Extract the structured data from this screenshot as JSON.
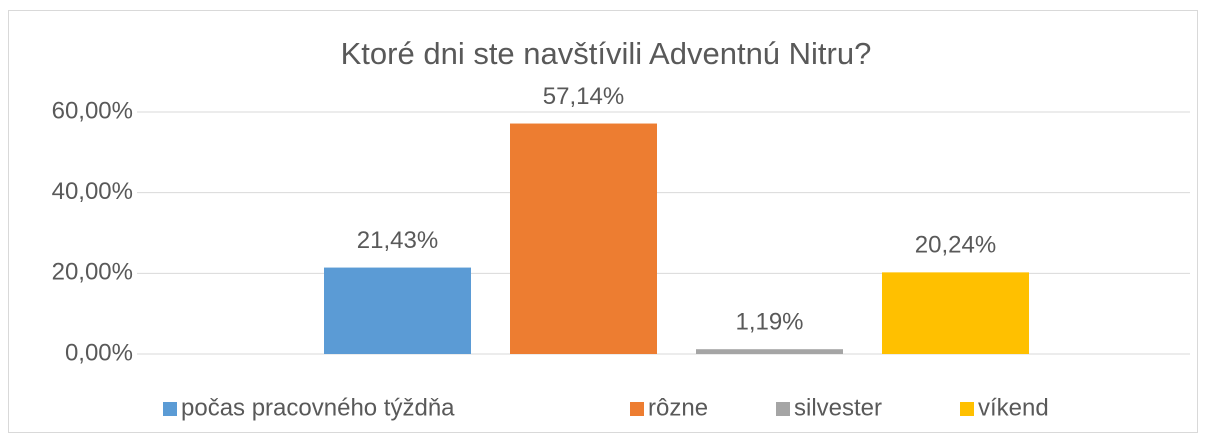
{
  "chart_data": {
    "type": "bar",
    "title": "Ktoré dni ste navštívili Adventnú Nitru?",
    "categories": [
      null
    ],
    "series": [
      {
        "name": "počas pracovného týždňa",
        "color": "#5b9bd5",
        "values": [
          21.43
        ],
        "value_labels": [
          "21,43%"
        ]
      },
      {
        "name": "rôzne",
        "color": "#ed7d31",
        "values": [
          57.14
        ],
        "value_labels": [
          "57,14%"
        ]
      },
      {
        "name": "silvester",
        "color": "#a5a5a5",
        "values": [
          1.19
        ],
        "value_labels": [
          "1,19%"
        ]
      },
      {
        "name": "víkend",
        "color": "#ffc000",
        "values": [
          20.24
        ],
        "value_labels": [
          "20,24%"
        ]
      }
    ],
    "ylim": [
      0,
      60
    ],
    "yticks": [
      {
        "value": 0,
        "label": "0,00%"
      },
      {
        "value": 20,
        "label": "20,00%"
      },
      {
        "value": 40,
        "label": "40,00%"
      },
      {
        "value": 60,
        "label": "60,00%"
      }
    ],
    "grid": true,
    "legend": "bottom"
  }
}
